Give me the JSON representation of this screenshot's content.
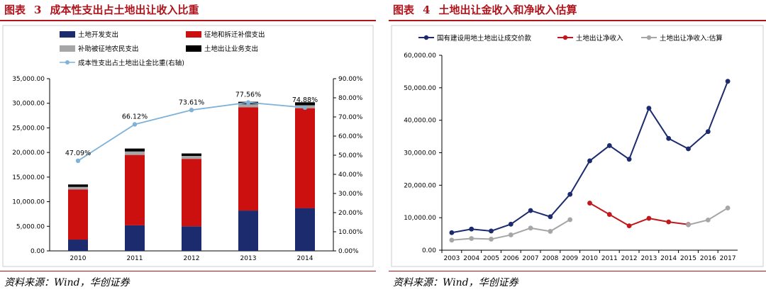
{
  "figures": [
    {
      "figure_label": "图表",
      "figure_number": "3",
      "title": "成本性支出占土地出让收入比重",
      "source": "资料来源：Wind，华创证券"
    },
    {
      "figure_label": "图表",
      "figure_number": "4",
      "title": "土地出让金收入和净收入估算",
      "source": "资料来源：Wind，华创证券"
    }
  ],
  "chart_data": [
    {
      "type": "bar",
      "stacked": true,
      "categories": [
        "2010",
        "2011",
        "2012",
        "2013",
        "2014"
      ],
      "series": [
        {
          "name": "土地开发支出",
          "color": "#1c2b6e",
          "values": [
            2300,
            5200,
            5000,
            8200,
            8700
          ]
        },
        {
          "name": "征地和拆迁补偿支出",
          "color": "#cc1010",
          "values": [
            10200,
            14300,
            13700,
            21000,
            20300
          ]
        },
        {
          "name": "补助被征地农民支出",
          "color": "#a6a6a6",
          "values": [
            500,
            700,
            600,
            600,
            600
          ]
        },
        {
          "name": "土地出让业务支出",
          "color": "#000000",
          "values": [
            500,
            600,
            500,
            500,
            600
          ]
        }
      ],
      "line_series": {
        "name": "成本性支出占土地出让金比重(右轴)",
        "color": "#7fb2d9",
        "values": [
          47.09,
          66.12,
          73.61,
          77.56,
          74.88
        ],
        "labels": [
          "47.09%",
          "66.12%",
          "73.61%",
          "77.56%",
          "74.88%"
        ]
      },
      "y_left": {
        "min": 0,
        "max": 35000,
        "ticks": [
          "0.00",
          "5,000.00",
          "10,000.00",
          "15,000.00",
          "20,000.00",
          "25,000.00",
          "30,000.00",
          "35,000.00"
        ]
      },
      "y_right": {
        "min": 0,
        "max": 90,
        "ticks": [
          "0.00%",
          "10.00%",
          "20.00%",
          "30.00%",
          "40.00%",
          "50.00%",
          "60.00%",
          "70.00%",
          "80.00%",
          "90.00%"
        ]
      },
      "legend_placement": "top"
    },
    {
      "type": "line",
      "categories": [
        "2003",
        "2004",
        "2005",
        "2006",
        "2007",
        "2008",
        "2009",
        "2010",
        "2011",
        "2012",
        "2013",
        "2014",
        "2015",
        "2016",
        "2017"
      ],
      "series": [
        {
          "name": "国有建设用地土地出让成交价款",
          "color": "#1c2b6e",
          "values": [
            null,
            null,
            null,
            null,
            null,
            null,
            null,
            null,
            null,
            null,
            null,
            null,
            null,
            null,
            null
          ],
          "points": [
            5400,
            6500,
            5900,
            8000,
            12200,
            10300,
            17200,
            27500,
            32200,
            28000,
            43700,
            34400,
            31200,
            36500,
            52000
          ]
        },
        {
          "name": "土地出让净收入",
          "color": "#c0181c",
          "points": [
            null,
            null,
            null,
            null,
            null,
            null,
            null,
            14500,
            11000,
            7500,
            9800,
            8700,
            7900,
            null,
            null
          ]
        },
        {
          "name": "土地出让净收入:估算",
          "color": "#a6a6a6",
          "points": [
            3100,
            3600,
            3400,
            4700,
            6800,
            5800,
            9400,
            null,
            null,
            null,
            null,
            null,
            7800,
            9300,
            13000
          ]
        }
      ],
      "y": {
        "min": 0,
        "max": 60000,
        "ticks": [
          "0.00",
          "10,000.00",
          "20,000.00",
          "30,000.00",
          "40,000.00",
          "50,000.00",
          "60,000.00"
        ]
      },
      "legend_placement": "top"
    }
  ]
}
